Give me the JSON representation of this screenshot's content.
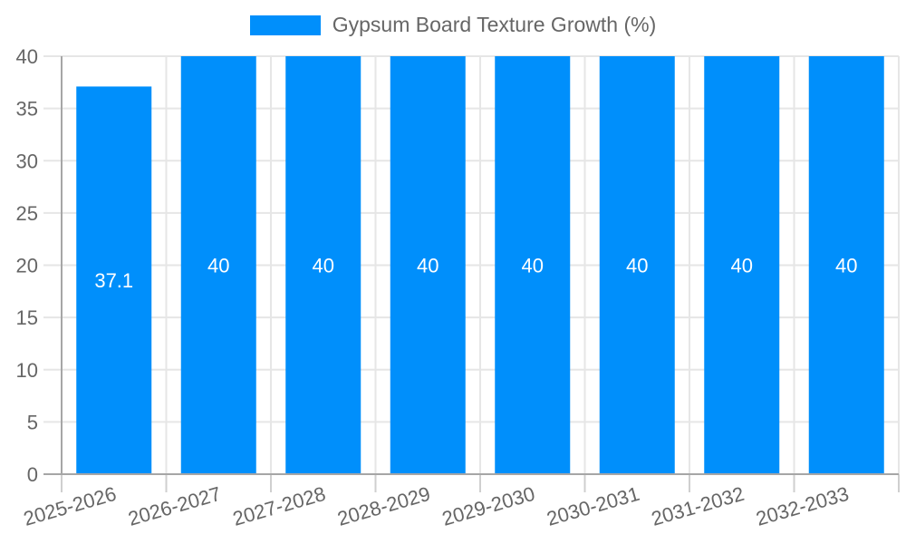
{
  "legend": {
    "label": "Gypsum Board Texture Growth (%)"
  },
  "chart_data": {
    "type": "bar",
    "title": "Gypsum Board Texture Growth (%)",
    "categories": [
      "2025-2026",
      "2026-2027",
      "2027-2028",
      "2028-2029",
      "2029-2030",
      "2030-2031",
      "2031-2032",
      "2032-2033"
    ],
    "series": [
      {
        "name": "Gypsum Board Texture Growth (%)",
        "values": [
          37.1,
          40,
          40,
          40,
          40,
          40,
          40,
          40
        ]
      }
    ],
    "data_labels": [
      "37.1",
      "40",
      "40",
      "40",
      "40",
      "40",
      "40",
      "40"
    ],
    "xlabel": "",
    "ylabel": "",
    "ylim": [
      0,
      40
    ],
    "y_ticks": [
      0,
      5,
      10,
      15,
      20,
      25,
      30,
      35,
      40
    ],
    "grid": true,
    "legend_position": "top-center",
    "x_label_rotation_deg": -16,
    "colors": {
      "bar": "#008FFB",
      "grid": "#e6e6e6",
      "axis": "#a6a6a6",
      "tick": "#cfcfcf",
      "axis_label": "#666666",
      "legend_text": "#666666",
      "data_label": "#ffffff",
      "background": "#ffffff"
    }
  }
}
